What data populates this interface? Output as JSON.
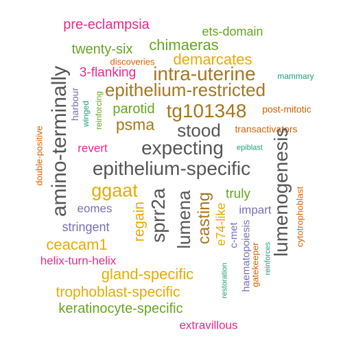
{
  "colors": {
    "pink": "#e7298a",
    "green": "#66a61e",
    "orange": "#e6ab02",
    "brown": "#a6761d",
    "gray": "#555555",
    "purple": "#7570b3",
    "red_orange": "#d95f02",
    "teal": "#1b9e77"
  },
  "words": [
    {
      "text": "pre-eclampsia",
      "color": "pink"
    },
    {
      "text": "ets-domain",
      "color": "green"
    },
    {
      "text": "chimaeras",
      "color": "green"
    },
    {
      "text": "twenty-six",
      "color": "green"
    },
    {
      "text": "discoveries",
      "color": "red_orange"
    },
    {
      "text": "demarcates",
      "color": "orange"
    },
    {
      "text": "3-flanking",
      "color": "pink"
    },
    {
      "text": "intra-uterine",
      "color": "brown"
    },
    {
      "text": "mammary",
      "color": "teal"
    },
    {
      "text": "amino-terminally",
      "color": "gray"
    },
    {
      "text": "harbour",
      "color": "purple"
    },
    {
      "text": "epithelium-restricted",
      "color": "brown"
    },
    {
      "text": "reinforcing",
      "color": "green"
    },
    {
      "text": "winged",
      "color": "teal"
    },
    {
      "text": "parotid",
      "color": "green"
    },
    {
      "text": "tg101348",
      "color": "brown"
    },
    {
      "text": "post-mitotic",
      "color": "red_orange"
    },
    {
      "text": "psma",
      "color": "brown"
    },
    {
      "text": "stood",
      "color": "gray"
    },
    {
      "text": "transactivators",
      "color": "red_orange"
    },
    {
      "text": "revert",
      "color": "pink"
    },
    {
      "text": "epiblast",
      "color": "teal"
    },
    {
      "text": "expecting",
      "color": "gray"
    },
    {
      "text": "double-positive",
      "color": "red_orange"
    },
    {
      "text": "lumenogenesis",
      "color": "gray"
    },
    {
      "text": "epithelium-specific",
      "color": "gray"
    },
    {
      "text": "cytotrophoblast",
      "color": "red_orange"
    },
    {
      "text": "ggaat",
      "color": "orange"
    },
    {
      "text": "sprr2a",
      "color": "gray"
    },
    {
      "text": "lumena",
      "color": "gray"
    },
    {
      "text": "casting",
      "color": "brown"
    },
    {
      "text": "truly",
      "color": "green"
    },
    {
      "text": "e74-like",
      "color": "orange"
    },
    {
      "text": "eomes",
      "color": "purple"
    },
    {
      "text": "regain",
      "color": "orange"
    },
    {
      "text": "impart",
      "color": "purple"
    },
    {
      "text": "stringent",
      "color": "purple"
    },
    {
      "text": "c-met",
      "color": "purple"
    },
    {
      "text": "ceacam1",
      "color": "orange"
    },
    {
      "text": "haematopoiesis",
      "color": "purple"
    },
    {
      "text": "helix-turn-helix",
      "color": "pink"
    },
    {
      "text": "gatekeeper",
      "color": "red_orange"
    },
    {
      "text": "reinforces",
      "color": "teal"
    },
    {
      "text": "gland-specific",
      "color": "orange"
    },
    {
      "text": "restoration",
      "color": "teal"
    },
    {
      "text": "trophoblast-specific",
      "color": "orange"
    },
    {
      "text": "keratinocyte-specific",
      "color": "green"
    },
    {
      "text": "extravillous",
      "color": "pink"
    }
  ]
}
